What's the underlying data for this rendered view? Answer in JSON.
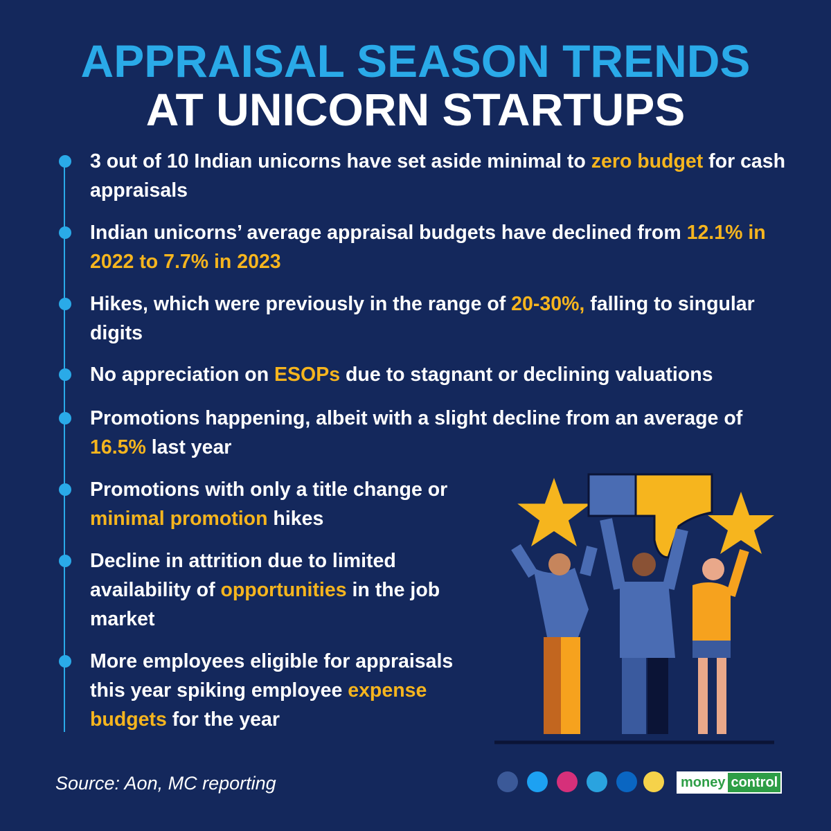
{
  "header": {
    "title_line1": "APPRAISAL SEASON TRENDS",
    "title_line2": "AT UNICORN STARTUPS"
  },
  "bullets": [
    [
      {
        "text": "3 out of 10 Indian unicorns have set aside minimal to ",
        "highlight": false
      },
      {
        "text": "zero budget",
        "highlight": true
      },
      {
        "text": " for cash appraisals",
        "highlight": false
      }
    ],
    [
      {
        "text": "Indian unicorns’ average appraisal budgets have declined from ",
        "highlight": false
      },
      {
        "text": "12.1% in 2022 to 7.7% in 2023",
        "highlight": true
      }
    ],
    [
      {
        "text": "Hikes, which were previously in the range of ",
        "highlight": false
      },
      {
        "text": "20-30%,",
        "highlight": true
      },
      {
        "text": " falling to singular digits",
        "highlight": false
      }
    ],
    [
      {
        "text": "No appreciation on ",
        "highlight": false
      },
      {
        "text": "ESOPs",
        "highlight": true
      },
      {
        "text": " due to stagnant or declining valuations",
        "highlight": false
      }
    ],
    [
      {
        "text": "Promotions happening, albeit with a slight decline from an average of ",
        "highlight": false
      },
      {
        "text": "16.5%",
        "highlight": true
      },
      {
        "text": " last year",
        "highlight": false
      }
    ],
    [
      {
        "text": "Promotions with only a title change or ",
        "highlight": false
      },
      {
        "text": "minimal promotion",
        "highlight": true
      },
      {
        "text": " hikes",
        "highlight": false
      }
    ],
    [
      {
        "text": "Decline in attrition due to limited availability of ",
        "highlight": false
      },
      {
        "text": "opportunities",
        "highlight": true
      },
      {
        "text": " in the job market",
        "highlight": false
      }
    ],
    [
      {
        "text": "More employees eligible for appraisals this year spiking employee ",
        "highlight": false
      },
      {
        "text": "expense budgets",
        "highlight": true
      },
      {
        "text": " for the year",
        "highlight": false
      }
    ]
  ],
  "footer": {
    "source": "Source: Aon, MC reporting",
    "logo_part1": "money",
    "logo_part2": "control"
  }
}
